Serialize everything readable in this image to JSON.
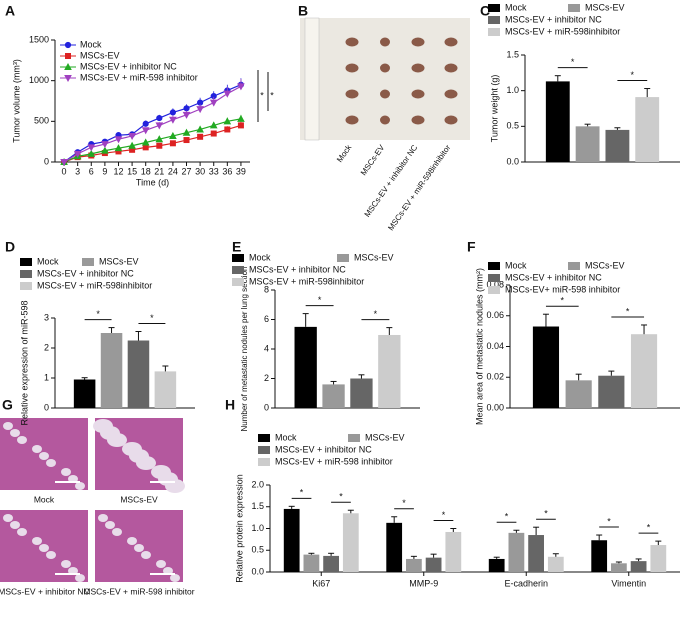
{
  "chart_data": [
    {
      "panel": "A",
      "type": "line",
      "x_label": "Time (d)",
      "y_label": "Tumor volume (mm³)",
      "xlim": [
        -2,
        41
      ],
      "xticks": [
        0,
        3,
        6,
        9,
        12,
        15,
        18,
        21,
        24,
        27,
        30,
        33,
        36,
        39
      ],
      "ylim": [
        0,
        1500
      ],
      "yticks": [
        0,
        500,
        1000,
        1500
      ],
      "annotations": [
        "*",
        "*"
      ],
      "series": [
        {
          "name": "Mock",
          "color": "#2222dd",
          "marker": "circle",
          "values": [
            0,
            120,
            220,
            250,
            330,
            340,
            470,
            540,
            610,
            660,
            730,
            810,
            880,
            950
          ],
          "errors": [
            0,
            15,
            25,
            20,
            30,
            30,
            40,
            40,
            50,
            50,
            60,
            60,
            70,
            80
          ]
        },
        {
          "name": "MSCs-EV",
          "color": "#dd2222",
          "marker": "square",
          "values": [
            0,
            60,
            80,
            110,
            130,
            150,
            180,
            200,
            230,
            270,
            310,
            350,
            400,
            450
          ],
          "errors": [
            0,
            10,
            10,
            15,
            15,
            20,
            20,
            25,
            25,
            30,
            30,
            35,
            40,
            50
          ]
        },
        {
          "name": "MSCs-EV + inhibitor NC",
          "color": "#22aa22",
          "marker": "triangle-up",
          "values": [
            0,
            70,
            100,
            140,
            170,
            200,
            240,
            280,
            320,
            360,
            400,
            450,
            500,
            530
          ],
          "errors": [
            0,
            10,
            15,
            15,
            20,
            20,
            25,
            30,
            30,
            35,
            40,
            40,
            45,
            50
          ]
        },
        {
          "name": "MSCs-EV + miR-598 inhibitor",
          "color": "#a040c0",
          "marker": "triangle-down",
          "values": [
            0,
            100,
            180,
            220,
            280,
            320,
            390,
            450,
            520,
            580,
            650,
            730,
            840,
            930
          ],
          "errors": [
            0,
            15,
            20,
            25,
            30,
            30,
            35,
            40,
            50,
            50,
            60,
            70,
            80,
            90
          ]
        }
      ]
    },
    {
      "panel": "C",
      "type": "bar",
      "y_label": "Tumor weight (g)",
      "ylim": [
        0,
        1.5
      ],
      "yticks": [
        {
          "value": 0,
          "label": "0.0"
        },
        0.5,
        {
          "value": 1,
          "label": "1.0"
        },
        1.5
      ],
      "annotations": [
        "*",
        "*"
      ],
      "series": [
        {
          "name": "Mock",
          "color": "#000000",
          "values": [
            1.13
          ],
          "errors": [
            0.08
          ]
        },
        {
          "name": "MSCs-EV",
          "color": "#999999",
          "values": [
            0.5
          ],
          "errors": [
            0.03
          ]
        },
        {
          "name": "MSCs-EV + inhibitor NC",
          "color": "#666666",
          "values": [
            0.45
          ],
          "errors": [
            0.03
          ]
        },
        {
          "name": "MSCs-EV + miR-598inhibitor",
          "color": "#cccccc",
          "values": [
            0.91
          ],
          "errors": [
            0.12
          ]
        }
      ]
    },
    {
      "panel": "D",
      "type": "bar",
      "y_label": "Relative expression of miR-598",
      "ylim": [
        0,
        3
      ],
      "yticks": [
        0,
        1,
        2,
        3
      ],
      "annotations": [
        "*",
        "*"
      ],
      "series": [
        {
          "name": "Mock",
          "color": "#000000",
          "values": [
            0.95
          ],
          "errors": [
            0.06
          ]
        },
        {
          "name": "MSCs-EV",
          "color": "#999999",
          "values": [
            2.5
          ],
          "errors": [
            0.18
          ]
        },
        {
          "name": "MSCs-EV + inhibitor NC",
          "color": "#666666",
          "values": [
            2.25
          ],
          "errors": [
            0.3
          ]
        },
        {
          "name": "MSCs-EV + miR-598inhibitor",
          "color": "#cccccc",
          "values": [
            1.22
          ],
          "errors": [
            0.18
          ]
        }
      ]
    },
    {
      "panel": "E",
      "type": "bar",
      "y_label": "Number of metastatic nodules per lung section",
      "ylim": [
        0,
        8
      ],
      "yticks": [
        0,
        2,
        4,
        6,
        8
      ],
      "annotations": [
        "*",
        "*"
      ],
      "series": [
        {
          "name": "Mock",
          "color": "#000000",
          "values": [
            5.5
          ],
          "errors": [
            0.9
          ]
        },
        {
          "name": "MSCs-EV",
          "color": "#999999",
          "values": [
            1.6
          ],
          "errors": [
            0.2
          ]
        },
        {
          "name": "MSCs-EV + inhibitor NC",
          "color": "#666666",
          "values": [
            2.0
          ],
          "errors": [
            0.25
          ]
        },
        {
          "name": "MSCs-EV + miR-598inhibitor",
          "color": "#cccccc",
          "values": [
            4.95
          ],
          "errors": [
            0.5
          ]
        }
      ]
    },
    {
      "panel": "F",
      "type": "bar",
      "y_label": "Mean area of metastatic nodules (mm²)",
      "ylim": [
        0,
        0.08
      ],
      "yticks": [
        {
          "value": 0,
          "label": "0.00"
        },
        {
          "value": 0.02,
          "label": "0.02"
        },
        {
          "value": 0.04,
          "label": "0.04"
        },
        {
          "value": 0.06,
          "label": "0.06"
        },
        {
          "value": 0.08,
          "label": "0.08"
        }
      ],
      "annotations": [
        "*",
        "*"
      ],
      "series": [
        {
          "name": "Mock",
          "color": "#000000",
          "values": [
            0.053
          ],
          "errors": [
            0.008
          ]
        },
        {
          "name": "MSCs-EV",
          "color": "#999999",
          "values": [
            0.018
          ],
          "errors": [
            0.004
          ]
        },
        {
          "name": "MSCs-EV + inhibitor NC",
          "color": "#666666",
          "values": [
            0.021
          ],
          "errors": [
            0.003
          ]
        },
        {
          "name": "MSCs-EV+ miR-598 inhibitor",
          "color": "#cccccc",
          "values": [
            0.048
          ],
          "errors": [
            0.006
          ]
        }
      ]
    },
    {
      "panel": "H",
      "type": "bar",
      "y_label": "Relative protein expression",
      "ylim": [
        0,
        2
      ],
      "categories": [
        "Ki67",
        "MMP-9",
        "E-cadherin",
        "Vimentin"
      ],
      "yticks": [
        {
          "value": 0,
          "label": "0.0"
        },
        0.5,
        {
          "value": 1,
          "label": "1.0"
        },
        1.5,
        {
          "value": 2,
          "label": "2.0"
        }
      ],
      "annotations": [
        "*",
        "*",
        "*",
        "*",
        "*",
        "*",
        "*",
        "*"
      ],
      "series": [
        {
          "name": "Mock",
          "color": "#000000",
          "values": [
            1.45,
            1.13,
            0.3,
            0.73
          ],
          "errors": [
            0.06,
            0.14,
            0.04,
            0.12
          ]
        },
        {
          "name": "MSCs-EV",
          "color": "#999999",
          "values": [
            0.4,
            0.3,
            0.9,
            0.2
          ],
          "errors": [
            0.03,
            0.06,
            0.06,
            0.03
          ]
        },
        {
          "name": "MSCs-EV + inhibitor NC",
          "color": "#666666",
          "values": [
            0.37,
            0.33,
            0.85,
            0.25
          ],
          "errors": [
            0.06,
            0.08,
            0.18,
            0.05
          ]
        },
        {
          "name": "MSCs-EV + miR-598 inhibitor",
          "color": "#cccccc",
          "values": [
            1.35,
            0.92,
            0.35,
            0.62
          ],
          "errors": [
            0.07,
            0.08,
            0.07,
            0.09
          ]
        }
      ]
    }
  ],
  "images": [
    {
      "panel": "B",
      "labels": [
        "Mock",
        "MSCs-EV",
        "MSCs-EV + inhibitor NC",
        "MSCs-EV + miR-598inhibitor"
      ]
    },
    {
      "panel": "G",
      "labels": [
        "Mock",
        "MSCs-EV",
        "MSCs-EV + inhibitor NC",
        "MSCs-EV + miR-598 inhibitor"
      ]
    }
  ]
}
